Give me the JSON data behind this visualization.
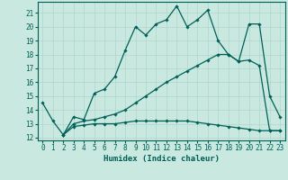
{
  "title": "",
  "xlabel": "Humidex (Indice chaleur)",
  "bg_color": "#c8e8e0",
  "grid_color": "#b0d4cc",
  "line_color": "#006058",
  "xlim": [
    -0.5,
    23.5
  ],
  "ylim": [
    11.8,
    21.8
  ],
  "yticks": [
    12,
    13,
    14,
    15,
    16,
    17,
    18,
    19,
    20,
    21
  ],
  "xticks": [
    0,
    1,
    2,
    3,
    4,
    5,
    6,
    7,
    8,
    9,
    10,
    11,
    12,
    13,
    14,
    15,
    16,
    17,
    18,
    19,
    20,
    21,
    22,
    23
  ],
  "curve1_x": [
    0,
    1,
    2,
    3,
    4,
    5,
    6,
    7,
    8,
    9,
    10,
    11,
    12,
    13,
    14,
    15,
    16,
    17,
    18,
    19,
    20,
    21,
    22,
    23
  ],
  "curve1_y": [
    14.5,
    13.2,
    12.2,
    13.5,
    13.3,
    15.2,
    15.5,
    16.4,
    18.3,
    20.0,
    19.4,
    20.2,
    20.5,
    21.5,
    20.0,
    20.5,
    21.2,
    19.0,
    18.0,
    17.5,
    20.2,
    20.2,
    15.0,
    13.5
  ],
  "curve2_x": [
    2,
    3,
    4,
    5,
    6,
    7,
    8,
    9,
    10,
    11,
    12,
    13,
    14,
    15,
    16,
    17,
    18,
    19,
    20,
    21,
    22,
    23
  ],
  "curve2_y": [
    12.2,
    13.0,
    13.2,
    13.3,
    13.5,
    13.7,
    14.0,
    14.5,
    15.0,
    15.5,
    16.0,
    16.4,
    16.8,
    17.2,
    17.6,
    18.0,
    18.0,
    17.5,
    17.6,
    17.2,
    12.5,
    12.5
  ],
  "curve3_x": [
    2,
    3,
    4,
    5,
    6,
    7,
    8,
    9,
    10,
    11,
    12,
    13,
    14,
    15,
    16,
    17,
    18,
    19,
    20,
    21,
    22,
    23
  ],
  "curve3_y": [
    12.2,
    12.8,
    12.9,
    13.0,
    13.0,
    13.0,
    13.1,
    13.2,
    13.2,
    13.2,
    13.2,
    13.2,
    13.2,
    13.1,
    13.0,
    12.9,
    12.8,
    12.7,
    12.6,
    12.5,
    12.5,
    12.5
  ],
  "marker": "D",
  "marker_size": 1.8,
  "line_width": 0.9,
  "tick_fontsize": 5.5,
  "xlabel_fontsize": 6.5
}
